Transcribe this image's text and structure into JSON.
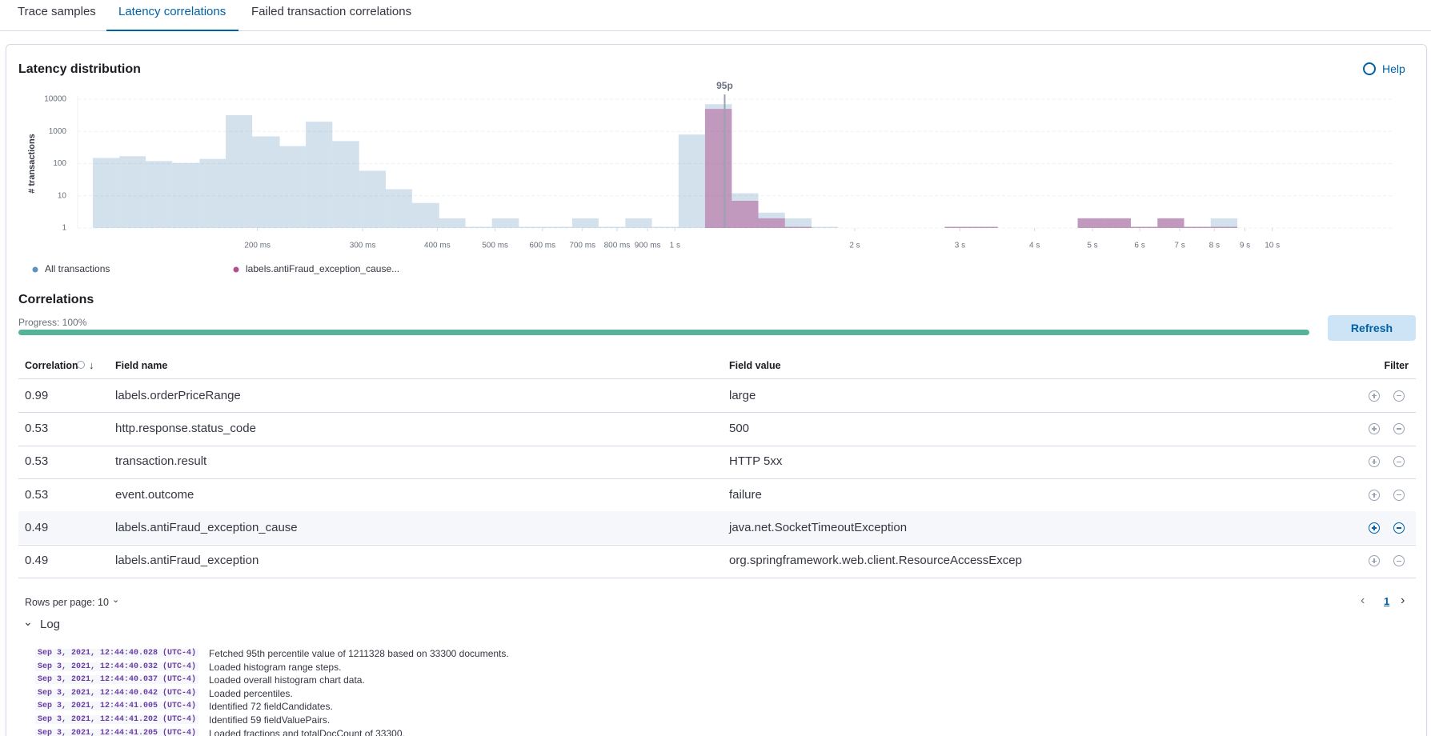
{
  "tabs": [
    "Trace samples",
    "Latency correlations",
    "Failed transaction correlations"
  ],
  "panel": {
    "title": "Latency distribution",
    "help": "Help"
  },
  "chart_data": {
    "type": "histogram",
    "ylabel": "# transactions",
    "log_x": true,
    "log_y": true,
    "grid": true,
    "xlim": [
      100,
      16000
    ],
    "ylim": [
      1,
      10000
    ],
    "xticks": [
      {
        "value": 200,
        "label": "200 ms"
      },
      {
        "value": 300,
        "label": "300 ms"
      },
      {
        "value": 400,
        "label": "400 ms"
      },
      {
        "value": 500,
        "label": "500 ms"
      },
      {
        "value": 600,
        "label": "600 ms"
      },
      {
        "value": 700,
        "label": "700 ms"
      },
      {
        "value": 800,
        "label": "800 ms"
      },
      {
        "value": 900,
        "label": "900 ms"
      },
      {
        "value": 1000,
        "label": "1 s"
      },
      {
        "value": 2000,
        "label": "2 s"
      },
      {
        "value": 3000,
        "label": "3 s"
      },
      {
        "value": 4000,
        "label": "4 s"
      },
      {
        "value": 5000,
        "label": "5 s"
      },
      {
        "value": 6000,
        "label": "6 s"
      },
      {
        "value": 7000,
        "label": "7 s"
      },
      {
        "value": 8000,
        "label": "8 s"
      },
      {
        "value": 9000,
        "label": "9 s"
      },
      {
        "value": 10000,
        "label": "10 s"
      }
    ],
    "yticks": [
      1,
      10,
      100,
      1000,
      10000
    ],
    "bins": [
      106,
      117.5,
      130,
      144,
      160,
      177,
      196,
      218,
      241,
      267,
      296,
      328,
      363,
      403,
      446,
      494,
      548,
      607,
      673,
      745,
      826,
      915,
      1014,
      1123,
      1245,
      1379,
      1528,
      1693,
      1876,
      2079,
      2303,
      2552,
      2828,
      3133,
      3472,
      3847,
      4262,
      4723,
      5233,
      5798,
      6425,
      7119,
      7888,
      8740,
      9685
    ],
    "series": [
      {
        "name": "All transactions",
        "color": "#6092c0",
        "values": [
          150,
          170,
          120,
          105,
          140,
          3200,
          700,
          350,
          2000,
          500,
          60,
          16,
          6,
          2,
          1,
          2,
          1,
          1,
          2,
          1,
          2,
          1,
          800,
          7000,
          12,
          3,
          2,
          1,
          0,
          0,
          0,
          0,
          1,
          1,
          0,
          0,
          0,
          2,
          2,
          1,
          2,
          1,
          2,
          0
        ]
      },
      {
        "name": "labels.antiFraud_exception_cause...",
        "color": "#b0508f",
        "values": [
          0,
          0,
          0,
          0,
          0,
          0,
          0,
          0,
          0,
          0,
          0,
          0,
          0,
          0,
          0,
          0,
          0,
          0,
          0,
          0,
          0,
          0,
          0,
          5000,
          7,
          2,
          1,
          0,
          0,
          0,
          0,
          0,
          1,
          1,
          0,
          0,
          0,
          2,
          2,
          1,
          2,
          1,
          1,
          0
        ]
      }
    ],
    "percentile": {
      "label": "95p",
      "value": 1211.328
    }
  },
  "correlations": {
    "title": "Correlations",
    "progress_label": "Progress: 100%",
    "progress": 100,
    "refresh": "Refresh",
    "columns": [
      "Correlation",
      "Field name",
      "Field value",
      "Filter"
    ],
    "rows": [
      [
        0.99,
        "labels.orderPriceRange",
        "large"
      ],
      [
        0.53,
        "http.response.status_code",
        "500"
      ],
      [
        0.53,
        "transaction.result",
        "HTTP 5xx"
      ],
      [
        0.53,
        "event.outcome",
        "failure"
      ],
      [
        0.49,
        "labels.antiFraud_exception_cause",
        "java.net.SocketTimeoutException"
      ],
      [
        0.49,
        "labels.antiFraud_exception",
        "org.springframework.web.client.ResourceAccessExcep"
      ]
    ]
  },
  "pagination": {
    "rows_per_page": "Rows per page: 10",
    "page": 1
  },
  "log": {
    "title": "Log",
    "entries": [
      {
        "time": "Sep 3, 2021, 12:44:40.028 (UTC-4)",
        "message": "Fetched 95th percentile value of 1211328 based on 33300 documents."
      },
      {
        "time": "Sep 3, 2021, 12:44:40.032 (UTC-4)",
        "message": "Loaded histogram range steps."
      },
      {
        "time": "Sep 3, 2021, 12:44:40.037 (UTC-4)",
        "message": "Loaded overall histogram chart data."
      },
      {
        "time": "Sep 3, 2021, 12:44:40.042 (UTC-4)",
        "message": "Loaded percentiles."
      },
      {
        "time": "Sep 3, 2021, 12:44:41.005 (UTC-4)",
        "message": "Identified 72 fieldCandidates."
      },
      {
        "time": "Sep 3, 2021, 12:44:41.202 (UTC-4)",
        "message": "Identified 59 fieldValuePairs."
      },
      {
        "time": "Sep 3, 2021, 12:44:41.205 (UTC-4)",
        "message": "Loaded fractions and totalDocCount of 33300."
      }
    ]
  }
}
